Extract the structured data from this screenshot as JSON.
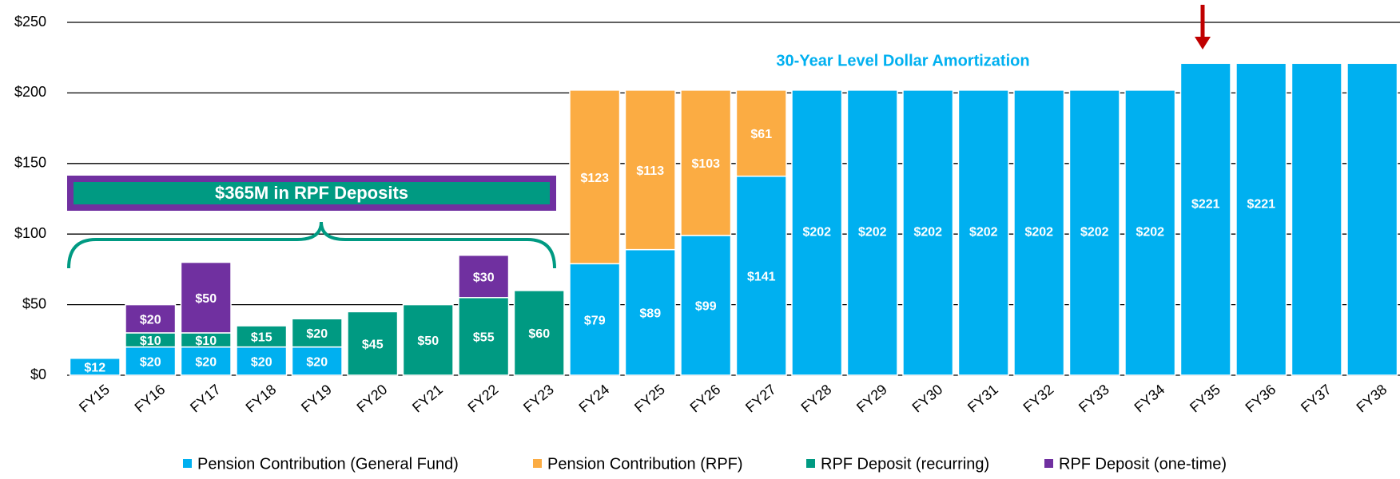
{
  "chart_data": {
    "type": "stacked_bar",
    "categories": [
      "FY15",
      "FY16",
      "FY17",
      "FY18",
      "FY19",
      "FY20",
      "FY21",
      "FY22",
      "FY23",
      "FY24",
      "FY25",
      "FY26",
      "FY27",
      "FY28",
      "FY29",
      "FY30",
      "FY31",
      "FY32",
      "FY33",
      "FY34",
      "FY35",
      "FY36",
      "FY37",
      "FY38"
    ],
    "series": [
      {
        "name": "Pension Contribution (General Fund)",
        "color": "#00b0f0",
        "values": [
          12,
          20,
          20,
          20,
          20,
          null,
          null,
          null,
          null,
          79,
          89,
          99,
          141,
          202,
          202,
          202,
          202,
          202,
          202,
          202,
          221,
          221,
          221,
          221
        ],
        "value_labels": [
          "$12",
          "$20",
          "$20",
          "$20",
          "$20",
          null,
          null,
          null,
          null,
          "$79",
          "$89",
          "$99",
          "$141",
          "$202",
          "$202",
          "$202",
          "$202",
          "$202",
          "$202",
          "$202",
          "$221",
          "$221",
          null,
          null
        ]
      },
      {
        "name": "Pension Contribution (RPF)",
        "color": "#fbac43",
        "values": [
          null,
          null,
          null,
          null,
          null,
          null,
          null,
          null,
          null,
          123,
          113,
          103,
          61,
          null,
          null,
          null,
          null,
          null,
          null,
          null,
          null,
          null,
          null,
          null
        ],
        "value_labels": [
          null,
          null,
          null,
          null,
          null,
          null,
          null,
          null,
          null,
          "$123",
          "$113",
          "$103",
          "$61",
          null,
          null,
          null,
          null,
          null,
          null,
          null,
          null,
          null,
          null,
          null
        ]
      },
      {
        "name": "RPF Deposit (recurring)",
        "color": "#009a82",
        "values": [
          null,
          10,
          10,
          15,
          20,
          45,
          50,
          55,
          60,
          null,
          null,
          null,
          null,
          null,
          null,
          null,
          null,
          null,
          null,
          null,
          null,
          null,
          null,
          null
        ],
        "value_labels": [
          null,
          "$10",
          "$10",
          "$15",
          "$20",
          "$45",
          "$50",
          "$55",
          "$60",
          null,
          null,
          null,
          null,
          null,
          null,
          null,
          null,
          null,
          null,
          null,
          null,
          null,
          null,
          null
        ]
      },
      {
        "name": "RPF Deposit (one-time)",
        "color": "#7030a0",
        "values": [
          null,
          20,
          50,
          null,
          null,
          null,
          null,
          30,
          null,
          null,
          null,
          null,
          null,
          null,
          null,
          null,
          null,
          null,
          null,
          null,
          null,
          null,
          null,
          null
        ],
        "value_labels": [
          null,
          "$20",
          "$50",
          null,
          null,
          null,
          null,
          "$30",
          null,
          null,
          null,
          null,
          null,
          null,
          null,
          null,
          null,
          null,
          null,
          null,
          null,
          null,
          null,
          null
        ]
      }
    ],
    "ylim": [
      0,
      250
    ],
    "yticks": [
      {
        "value": 0,
        "label": "$0"
      },
      {
        "value": 50,
        "label": "$50"
      },
      {
        "value": 100,
        "label": "$100"
      },
      {
        "value": 150,
        "label": "$150"
      },
      {
        "value": 200,
        "label": "$200"
      },
      {
        "value": 250,
        "label": "$250"
      }
    ],
    "grid": true,
    "legend": "bottom",
    "annotations": [
      "30-Year Level Dollar Amortization",
      "$365M in RPF Deposits"
    ]
  }
}
